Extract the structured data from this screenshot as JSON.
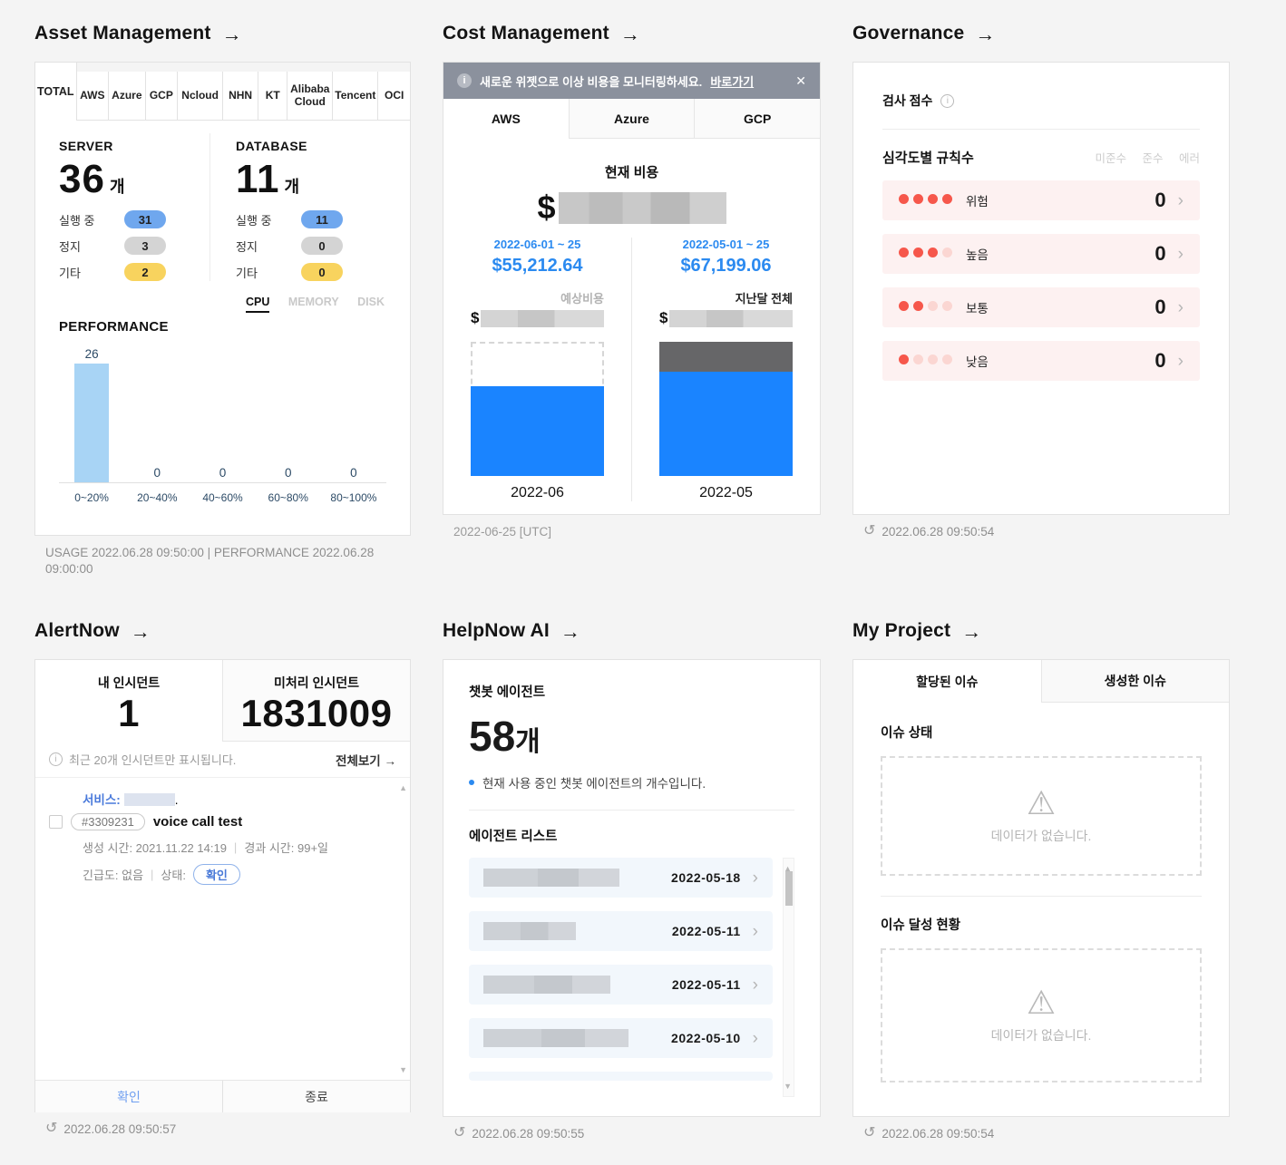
{
  "colors": {
    "accent_blue": "#1a84ff",
    "value_blue": "#2b8af0",
    "perf_bar_blue": "#a8d4f5",
    "badge_blue": "#6fa7ee",
    "badge_gray": "#d4d4d4",
    "badge_yellow": "#f8d35e",
    "severity_red": "#f6574b",
    "severity_faded": "#fbd6d2",
    "severity_row_bg": "#fdf1f1",
    "banner_gray": "#8b919d",
    "bar_dark_gray": "#666668",
    "page_bg": "#f4f4f4"
  },
  "widgets": {
    "asset": {
      "title": "Asset Management",
      "tabs": [
        "TOTAL",
        "AWS",
        "Azure",
        "GCP",
        "Ncloud",
        "NHN",
        "KT",
        "Alibaba Cloud",
        "Tencent",
        "OCI"
      ],
      "active_tab": "TOTAL",
      "server": {
        "label": "SERVER",
        "count": "36",
        "unit": "개",
        "rows": [
          {
            "label": "실행 중",
            "value": "31",
            "color": "#6fa7ee"
          },
          {
            "label": "정지",
            "value": "3",
            "color": "#d4d4d4"
          },
          {
            "label": "기타",
            "value": "2",
            "color": "#f8d35e"
          }
        ]
      },
      "database": {
        "label": "DATABASE",
        "count": "11",
        "unit": "개",
        "rows": [
          {
            "label": "실행 중",
            "value": "11",
            "color": "#6fa7ee"
          },
          {
            "label": "정지",
            "value": "0",
            "color": "#d4d4d4"
          },
          {
            "label": "기타",
            "value": "0",
            "color": "#f8d35e"
          }
        ]
      },
      "performance": {
        "label": "PERFORMANCE",
        "tabs": [
          "CPU",
          "MEMORY",
          "DISK"
        ],
        "active_tab": "CPU",
        "chart": {
          "type": "bar",
          "categories": [
            "0~20%",
            "20~40%",
            "40~60%",
            "60~80%",
            "80~100%"
          ],
          "values": [
            26,
            0,
            0,
            0,
            0
          ]
        }
      },
      "footer": "USAGE 2022.06.28 09:50:00 | PERFORMANCE 2022.06.28 09:00:00"
    },
    "cost": {
      "title": "Cost Management",
      "banner": {
        "text": "새로운 위젯으로 이상 비용을 모니터링하세요.",
        "link": "바로가기",
        "close": "✕"
      },
      "tabs": [
        "AWS",
        "Azure",
        "GCP"
      ],
      "active_tab": "AWS",
      "current": {
        "label": "현재 비용",
        "currency": "$"
      },
      "chart": {
        "type": "bar",
        "months": [
          {
            "range": "2022-06-01 ~ 25",
            "amount": "$55,212.64",
            "sub_label": "예상비용",
            "currency": "$",
            "month": "2022-06",
            "fill_pct": 67,
            "expected_dashed": true
          },
          {
            "range": "2022-05-01 ~ 25",
            "amount": "$67,199.06",
            "sub_label": "지난달 전체",
            "currency": "$",
            "month": "2022-05",
            "fill_pct": 78,
            "gray_pct": 22
          }
        ]
      },
      "footer": "2022-06-25 [UTC]"
    },
    "governance": {
      "title": "Governance",
      "score_label": "검사 점수",
      "section_label": "심각도별 규칙수",
      "col_headers": [
        "미준수",
        "준수",
        "에러"
      ],
      "rows": [
        {
          "label": "위험",
          "dots": 4,
          "value": "0"
        },
        {
          "label": "높음",
          "dots": 3,
          "value": "0"
        },
        {
          "label": "보통",
          "dots": 2,
          "value": "0"
        },
        {
          "label": "낮음",
          "dots": 1,
          "value": "0"
        }
      ],
      "footer": "2022.06.28 09:50:54"
    },
    "alertnow": {
      "title": "AlertNow",
      "tabs": [
        {
          "label": "내 인시던트",
          "value": "1"
        },
        {
          "label": "미처리 인시던트",
          "value": "1831009"
        }
      ],
      "notice": "최근 20개 인시던트만 표시됩니다.",
      "view_all": "전체보기",
      "incident": {
        "service_label": "서비스:",
        "id": "#3309231",
        "name": "voice call test",
        "created": "생성 시간: 2021.11.22 14:19",
        "elapsed": "경과 시간: 99+일",
        "urgency": "긴급도: 없음",
        "status_label": "상태:",
        "status": "확인",
        "separator": "|"
      },
      "actions": {
        "confirm": "확인",
        "close": "종료"
      },
      "footer": "2022.06.28 09:50:57"
    },
    "helpnow": {
      "title": "HelpNow AI",
      "agent_label": "챗봇 에이전트",
      "count": "58",
      "unit": "개",
      "desc": "현재 사용 중인 챗봇 에이전트의 개수입니다.",
      "list_label": "에이전트 리스트",
      "items": [
        {
          "date": "2022-05-18"
        },
        {
          "date": "2022-05-11"
        },
        {
          "date": "2022-05-11"
        },
        {
          "date": "2022-05-10"
        }
      ],
      "footer": "2022.06.28 09:50:55"
    },
    "myproject": {
      "title": "My Project",
      "tabs": [
        "할당된 이슈",
        "생성한 이슈"
      ],
      "active_tab": "할당된 이슈",
      "sections": [
        {
          "label": "이슈 상태",
          "empty_text": "데이터가 없습니다."
        },
        {
          "label": "이슈 달성 현황",
          "empty_text": "데이터가 없습니다."
        }
      ],
      "footer": "2022.06.28 09:50:54"
    }
  }
}
